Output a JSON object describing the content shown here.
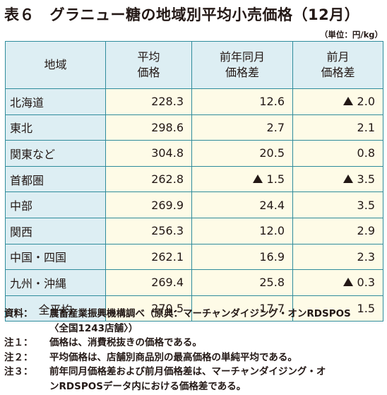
{
  "title": "表６　グラニュー糖の地域別平均小売価格（12月）",
  "unit": "（単位：円/kg）",
  "headers": {
    "region": "地域",
    "price_l1": "平均",
    "price_l2": "価格",
    "yoy_l1": "前年同月",
    "yoy_l2": "価格差",
    "mom_l1": "前月",
    "mom_l2": "価格差"
  },
  "rows": [
    {
      "region": "北海道",
      "price": "228.3",
      "yoy": "12.6",
      "yoy_neg": false,
      "mom": "2.0",
      "mom_neg": true
    },
    {
      "region": "東北",
      "price": "298.6",
      "yoy": "2.7",
      "yoy_neg": false,
      "mom": "2.1",
      "mom_neg": false
    },
    {
      "region": "関東など",
      "price": "304.8",
      "yoy": "20.5",
      "yoy_neg": false,
      "mom": "0.8",
      "mom_neg": false
    },
    {
      "region": "首都圏",
      "price": "262.8",
      "yoy": "1.5",
      "yoy_neg": true,
      "mom": "3.5",
      "mom_neg": true
    },
    {
      "region": "中部",
      "price": "269.9",
      "yoy": "24.4",
      "yoy_neg": false,
      "mom": "3.5",
      "mom_neg": false
    },
    {
      "region": "関西",
      "price": "256.3",
      "yoy": "12.0",
      "yoy_neg": false,
      "mom": "2.9",
      "mom_neg": false
    },
    {
      "region": "中国・四国",
      "price": "262.1",
      "yoy": "16.9",
      "yoy_neg": false,
      "mom": "2.3",
      "mom_neg": false
    },
    {
      "region": "九州・沖縄",
      "price": "269.4",
      "yoy": "25.8",
      "yoy_neg": false,
      "mom": "0.3",
      "mom_neg": true
    },
    {
      "region": "全平均",
      "price": "270.5",
      "yoy": "17.7",
      "yoy_neg": false,
      "mom": "1.5",
      "mom_neg": false
    }
  ],
  "notes": {
    "source_tag": "資料：",
    "source_l1": "農畜産業振興機構調べ（原典：マーチャンダイジング・オンRDSPOS",
    "source_l2": "〈全国1243店舗〉）",
    "n1_tag": "注１：",
    "n1": "価格は、消費税抜きの価格である。",
    "n2_tag": "注２：",
    "n2": "平均価格は、店舗別商品別の最高価格の単純平均である。",
    "n3_tag": "注３：",
    "n3_l1": "前年同月価格差および前月価格差は、マーチャンダイジング・オ",
    "n3_l2": "ンRDSPOSデータ内における価格差である。"
  }
}
